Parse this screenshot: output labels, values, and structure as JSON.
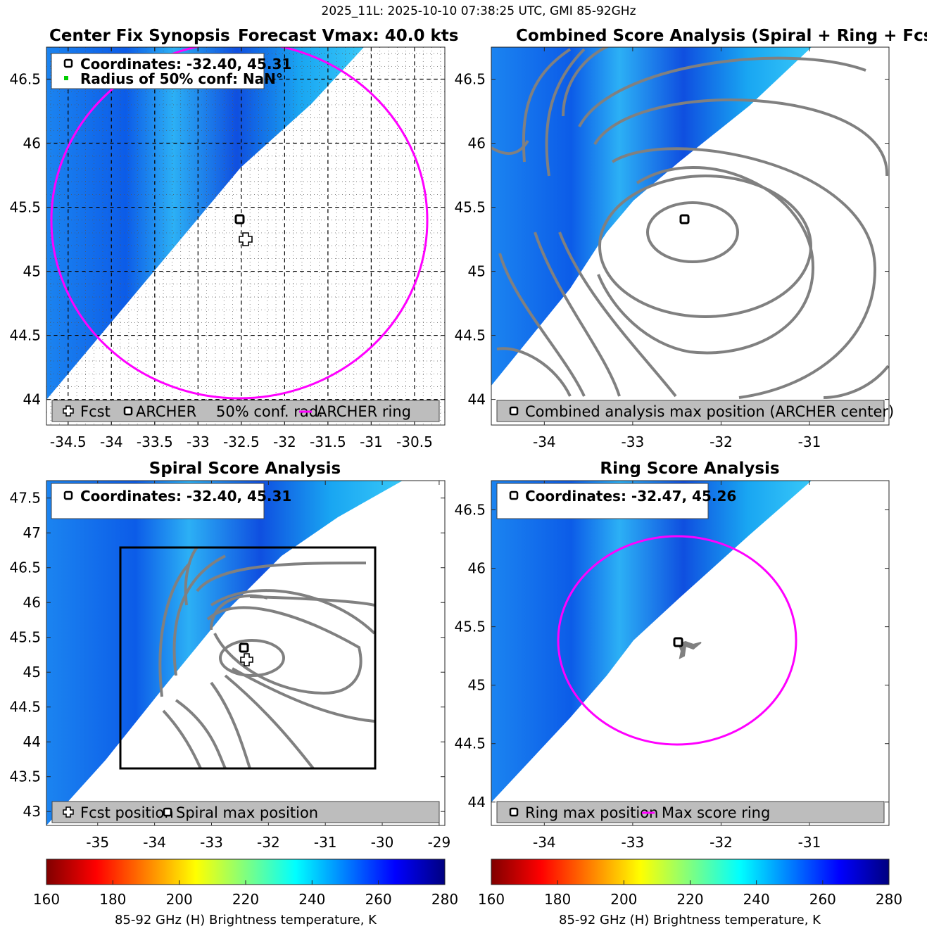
{
  "figure": {
    "suptitle": "2025_11L: 2025-10-10 07:38:25 UTC, GMI 85-92GHz",
    "colors": {
      "ring": "#ff00ff",
      "contour": "#808080",
      "legend_bg": "#bdbdbd",
      "conf": "#00cc00"
    }
  },
  "chart_data": [
    {
      "type": "heatmap",
      "id": "center_fix",
      "title": "Center Fix Synopsis",
      "title_right": "Forecast Vmax: 40.0 kts",
      "xlim": [
        -34.75,
        -30.15
      ],
      "ylim": [
        43.8,
        46.75
      ],
      "xticks": [
        -34.5,
        -34,
        -33.5,
        -33,
        -32.5,
        -32,
        -31.5,
        -31,
        -30.5
      ],
      "yticks": [
        44,
        44.5,
        45,
        45.5,
        46,
        46.5
      ],
      "grid": true,
      "swath_edge": [
        [
          -34.75,
          43.8
        ],
        [
          -32.6,
          45.85
        ],
        [
          -31.85,
          46.75
        ]
      ],
      "archer_center": [
        -32.4,
        45.31
      ],
      "fcst_position": [
        -32.33,
        45.15
      ],
      "ring": {
        "center": [
          -32.4,
          45.31
        ],
        "radius_deg_lat": 1.5
      },
      "info": [
        "Coordinates: -32.40, 45.31",
        "Radius of 50% conf: NaN°"
      ],
      "legend": [
        "Fcst",
        "ARCHER",
        "50% conf. rad.",
        "ARCHER ring"
      ]
    },
    {
      "type": "heatmap",
      "id": "combined",
      "title": "Combined Score Analysis (Spiral + Ring + Fcst_Pe",
      "xlim": [
        -34.6,
        -30.1
      ],
      "ylim": [
        43.8,
        46.75
      ],
      "xticks": [
        -34,
        -33,
        -32,
        -31
      ],
      "yticks": [
        44,
        44.5,
        45,
        45.5,
        46,
        46.5
      ],
      "swath_edge": [
        [
          -34.6,
          43.8
        ],
        [
          -32.6,
          45.85
        ],
        [
          -31.6,
          46.75
        ]
      ],
      "archer_center": [
        -32.4,
        45.31
      ],
      "contour_center": [
        -32.25,
        45.2
      ],
      "legend": [
        "Combined analysis max position (ARCHER center)"
      ]
    },
    {
      "type": "heatmap",
      "id": "spiral",
      "title": "Spiral Score Analysis",
      "xlim": [
        -35.9,
        -28.9
      ],
      "ylim": [
        42.8,
        47.75
      ],
      "xticks": [
        -35,
        -34,
        -33,
        -32,
        -31,
        -30,
        -29
      ],
      "yticks": [
        43,
        43.5,
        44,
        44.5,
        45,
        45.5,
        46,
        46.5,
        47,
        47.5
      ],
      "swath_edge": [
        [
          -35.9,
          42.8
        ],
        [
          -32.5,
          45.9
        ],
        [
          -29.6,
          47.75
        ]
      ],
      "archer_center": [
        -32.4,
        45.31
      ],
      "fcst_position": [
        -32.35,
        45.15
      ],
      "box": {
        "x": [
          -34.6,
          -30.1
        ],
        "y": [
          43.55,
          46.75
        ]
      },
      "info": [
        "Coordinates: -32.40, 45.31"
      ],
      "legend": [
        "Fcst position",
        "Spiral max position"
      ]
    },
    {
      "type": "heatmap",
      "id": "ring",
      "title": "Ring Score Analysis",
      "xlim": [
        -34.6,
        -30.1
      ],
      "ylim": [
        43.8,
        46.75
      ],
      "xticks": [
        -34,
        -33,
        -32,
        -31
      ],
      "yticks": [
        44,
        44.5,
        45,
        45.5,
        46,
        46.5
      ],
      "swath_edge": [
        [
          -34.6,
          43.8
        ],
        [
          -32.6,
          45.85
        ],
        [
          -31.6,
          46.75
        ]
      ],
      "ring_max_position": [
        -32.47,
        45.26
      ],
      "ring": {
        "center": [
          -32.47,
          45.26
        ],
        "radius_deg_lat": 0.95
      },
      "info": [
        "Coordinates: -32.47, 45.26"
      ],
      "legend": [
        "Ring max position",
        "Max score ring"
      ]
    }
  ],
  "colorbar": {
    "ticks": [
      160,
      180,
      200,
      220,
      240,
      260,
      280
    ],
    "range": [
      160,
      280
    ],
    "label": "85-92 GHz (H) Brightness temperature, K"
  }
}
